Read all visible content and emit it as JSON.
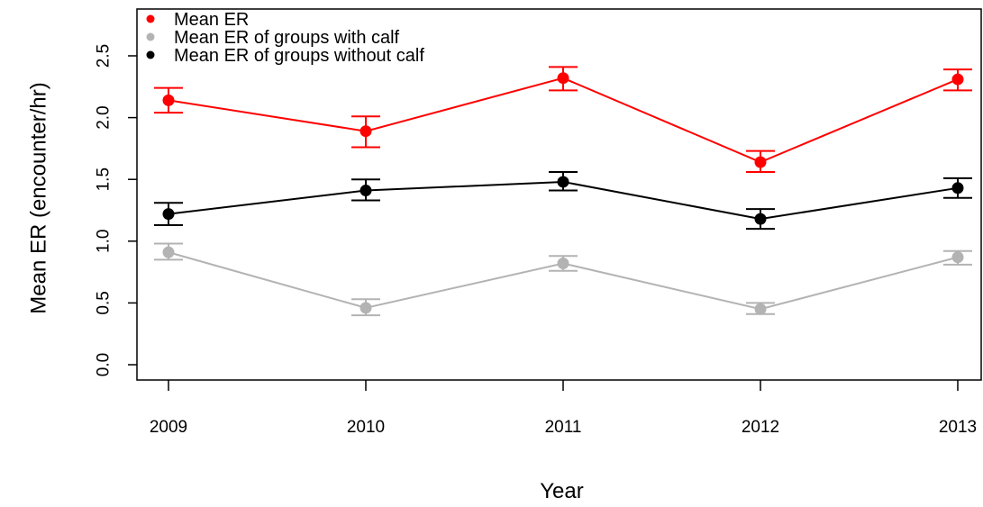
{
  "chart_data": {
    "type": "line",
    "xlabel": "Year",
    "ylabel": "Mean ER (encounter/hr)",
    "x": [
      2009,
      2010,
      2011,
      2012,
      2013
    ],
    "ylim": [
      0,
      2.75
    ],
    "yticks": [
      "0.0",
      "0.5",
      "1.0",
      "1.5",
      "2.0",
      "2.5"
    ],
    "grid": false,
    "legend": "top-left",
    "series": [
      {
        "name": "Mean ER",
        "color": "#ff0000",
        "values": [
          2.14,
          1.89,
          2.32,
          1.64,
          2.31
        ],
        "lower": [
          2.04,
          1.76,
          2.22,
          1.56,
          2.22
        ],
        "upper": [
          2.24,
          2.01,
          2.41,
          1.73,
          2.39
        ]
      },
      {
        "name": "Mean ER of groups with calf",
        "color": "#b3b3b3",
        "values": [
          0.91,
          0.46,
          0.82,
          0.45,
          0.87
        ],
        "lower": [
          0.85,
          0.4,
          0.76,
          0.41,
          0.81
        ],
        "upper": [
          0.98,
          0.53,
          0.88,
          0.5,
          0.92
        ]
      },
      {
        "name": "Mean ER of groups without calf",
        "color": "#000000",
        "values": [
          1.22,
          1.41,
          1.48,
          1.18,
          1.43
        ],
        "lower": [
          1.13,
          1.33,
          1.41,
          1.1,
          1.35
        ],
        "upper": [
          1.31,
          1.5,
          1.56,
          1.26,
          1.51
        ]
      }
    ]
  }
}
